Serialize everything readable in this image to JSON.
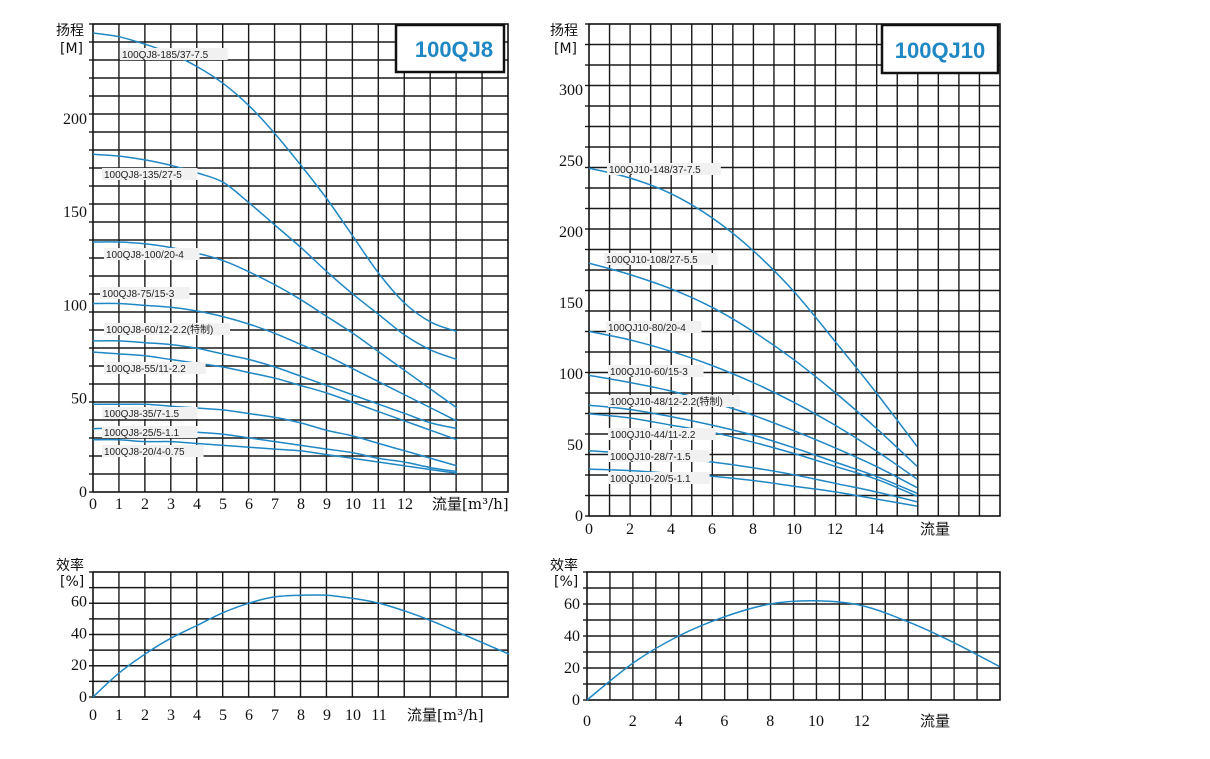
{
  "chart_data": [
    {
      "type": "line",
      "title": "100QJ8",
      "ylabel": "扬程",
      "yunit": "[M]",
      "xlabel": "流量[m³/h]",
      "xlim": [
        0,
        16
      ],
      "ylim": [
        0,
        245
      ],
      "xticks": [
        0,
        1,
        2,
        3,
        4,
        5,
        6,
        7,
        8,
        9,
        10,
        11,
        12
      ],
      "yticks": [
        0,
        50,
        100,
        150,
        200
      ],
      "series": [
        {
          "name": "100QJ8-185/37-7.5",
          "x": [
            0,
            1,
            2,
            3,
            4,
            5,
            6,
            7,
            8,
            9,
            10,
            11,
            12,
            13,
            14
          ],
          "y": [
            246,
            244,
            240,
            235,
            228,
            219,
            207,
            192,
            175,
            157,
            137,
            117,
            101,
            91,
            86
          ]
        },
        {
          "name": "100QJ8-135/27-5",
          "x": [
            0,
            1,
            2,
            3,
            4,
            5,
            6,
            7,
            8,
            9,
            10,
            11,
            12,
            13,
            14
          ],
          "y": [
            181,
            180,
            178,
            175,
            171,
            166,
            155,
            143,
            131,
            118,
            106,
            95,
            84,
            76,
            71
          ]
        },
        {
          "name": "100QJ8-100/20-4",
          "x": [
            0,
            1,
            2,
            3,
            4,
            5,
            6,
            7,
            8,
            9,
            10,
            11,
            12,
            13,
            14
          ],
          "y": [
            134,
            134,
            133,
            131,
            128,
            124,
            118,
            111,
            103,
            94,
            85,
            75,
            65,
            55,
            45
          ]
        },
        {
          "name": "100QJ8-75/15-3",
          "x": [
            0,
            1,
            2,
            3,
            4,
            5,
            6,
            7,
            8,
            9,
            10,
            11,
            12,
            13,
            14
          ],
          "y": [
            101,
            101,
            100,
            99,
            97,
            94,
            90,
            85,
            79,
            73,
            66,
            59,
            52,
            45,
            38
          ]
        },
        {
          "name": "100QJ8-60/12-2.2(特制)",
          "x": [
            0,
            1,
            2,
            3,
            4,
            5,
            6,
            7,
            8,
            9,
            10,
            11,
            12,
            13,
            14
          ],
          "y": [
            81,
            81,
            80,
            79,
            77,
            74,
            71,
            67,
            62,
            57,
            52,
            47,
            42,
            37,
            34
          ]
        },
        {
          "name": "100QJ8-55/11-2.2",
          "x": [
            0,
            1,
            2,
            3,
            4,
            5,
            6,
            7,
            8,
            9,
            10,
            11,
            12,
            13,
            14
          ],
          "y": [
            75,
            74,
            73,
            71,
            69,
            67,
            64,
            61,
            57,
            53,
            48,
            43,
            38,
            33,
            28
          ]
        },
        {
          "name": "100QJ8-35/7-1.5",
          "x": [
            0,
            1,
            2,
            3,
            4,
            5,
            6,
            7,
            8,
            9,
            10,
            11,
            12,
            13,
            14
          ],
          "y": [
            47,
            47,
            47,
            46,
            45,
            44,
            42,
            40,
            37,
            33,
            30,
            26,
            22,
            18,
            14
          ]
        },
        {
          "name": "100QJ8-25/5-1.1",
          "x": [
            0,
            1,
            2,
            3,
            4,
            5,
            6,
            7,
            8,
            9,
            10,
            11,
            12,
            13,
            14
          ],
          "y": [
            34,
            34,
            33,
            33,
            32,
            31,
            29,
            27,
            25,
            23,
            21,
            18,
            16,
            13,
            11
          ]
        },
        {
          "name": "100QJ8-20/4-0.75",
          "x": [
            0,
            1,
            2,
            3,
            4,
            5,
            6,
            7,
            8,
            9,
            10,
            11,
            12,
            13,
            14
          ],
          "y": [
            28,
            28,
            27,
            27,
            26,
            25,
            24,
            23,
            22,
            20,
            18,
            16,
            14,
            12,
            10
          ]
        }
      ]
    },
    {
      "type": "line",
      "title": "100QJ10",
      "ylabel": "扬程",
      "yunit": "[M]",
      "xlabel": "流量",
      "xlim": [
        0,
        20
      ],
      "ylim": [
        0,
        345
      ],
      "xticks": [
        0,
        2,
        4,
        6,
        8,
        10,
        12,
        14
      ],
      "yticks": [
        0,
        50,
        100,
        150,
        200,
        250,
        300
      ],
      "series": [
        {
          "name": "100QJ10-148/37-7.5",
          "x": [
            0,
            2,
            4,
            6,
            8,
            10,
            12,
            14,
            16
          ],
          "y": [
            245,
            238,
            227,
            210,
            187,
            158,
            123,
            87,
            49
          ]
        },
        {
          "name": "100QJ10-108/27-5.5",
          "x": [
            0,
            2,
            4,
            6,
            8,
            10,
            12,
            14,
            16
          ],
          "y": [
            178,
            170,
            160,
            147,
            130,
            110,
            87,
            62,
            35
          ]
        },
        {
          "name": "100QJ10-80/20-4",
          "x": [
            0,
            2,
            4,
            6,
            8,
            10,
            12,
            14,
            16
          ],
          "y": [
            130,
            124,
            116,
            106,
            94,
            80,
            64,
            46,
            26
          ]
        },
        {
          "name": "100QJ10-60/15-3",
          "x": [
            0,
            2,
            4,
            6,
            8,
            10,
            12,
            14,
            16
          ],
          "y": [
            99,
            94,
            88,
            80,
            71,
            60,
            48,
            35,
            20
          ]
        },
        {
          "name": "100QJ10-48/12-2.2(特制)",
          "x": [
            0,
            2,
            4,
            6,
            8,
            10,
            12,
            14,
            16
          ],
          "y": [
            78,
            75,
            70,
            64,
            57,
            48,
            38,
            28,
            16
          ]
        },
        {
          "name": "100QJ10-44/11-2.2",
          "x": [
            0,
            2,
            4,
            6,
            8,
            10,
            12,
            14,
            16
          ],
          "y": [
            72,
            69,
            64,
            59,
            52,
            44,
            35,
            26,
            14
          ]
        },
        {
          "name": "100QJ10-28/7-1.5",
          "x": [
            0,
            2,
            4,
            6,
            8,
            10,
            12,
            14,
            16
          ],
          "y": [
            46,
            44,
            41,
            38,
            34,
            29,
            23,
            17,
            10
          ]
        },
        {
          "name": "100QJ10-20/5-1.1",
          "x": [
            0,
            2,
            4,
            6,
            8,
            10,
            12,
            14,
            16
          ],
          "y": [
            33,
            32,
            30,
            28,
            25,
            21,
            17,
            12,
            7
          ]
        }
      ]
    },
    {
      "type": "line",
      "ylabel": "效率",
      "yunit": "[%]",
      "xlabel": "流量[m³/h]",
      "xlim": [
        0,
        16
      ],
      "ylim": [
        0,
        80
      ],
      "xticks": [
        0,
        1,
        2,
        3,
        4,
        5,
        6,
        7,
        8,
        9,
        10,
        11
      ],
      "yticks": [
        0,
        20,
        40,
        60
      ],
      "series": [
        {
          "x": [
            0,
            1,
            2,
            3,
            4,
            5,
            6,
            7,
            8,
            9,
            10,
            11,
            12,
            13,
            14,
            15,
            16
          ],
          "y": [
            0,
            15,
            27,
            37,
            45,
            53,
            59,
            63,
            64,
            64,
            62,
            59,
            54,
            48,
            41,
            34,
            27
          ]
        }
      ]
    },
    {
      "type": "line",
      "ylabel": "效率",
      "yunit": "[%]",
      "xlabel": "流量",
      "xlim": [
        0,
        18
      ],
      "ylim": [
        0,
        80
      ],
      "xticks": [
        0,
        2,
        4,
        6,
        8,
        10,
        12
      ],
      "yticks": [
        0,
        20,
        40,
        60
      ],
      "series": [
        {
          "x": [
            0,
            2,
            4,
            6,
            8,
            10,
            12,
            14,
            16,
            18
          ],
          "y": [
            0,
            23,
            40,
            52,
            60,
            62,
            59,
            49,
            36,
            21
          ]
        }
      ]
    }
  ]
}
